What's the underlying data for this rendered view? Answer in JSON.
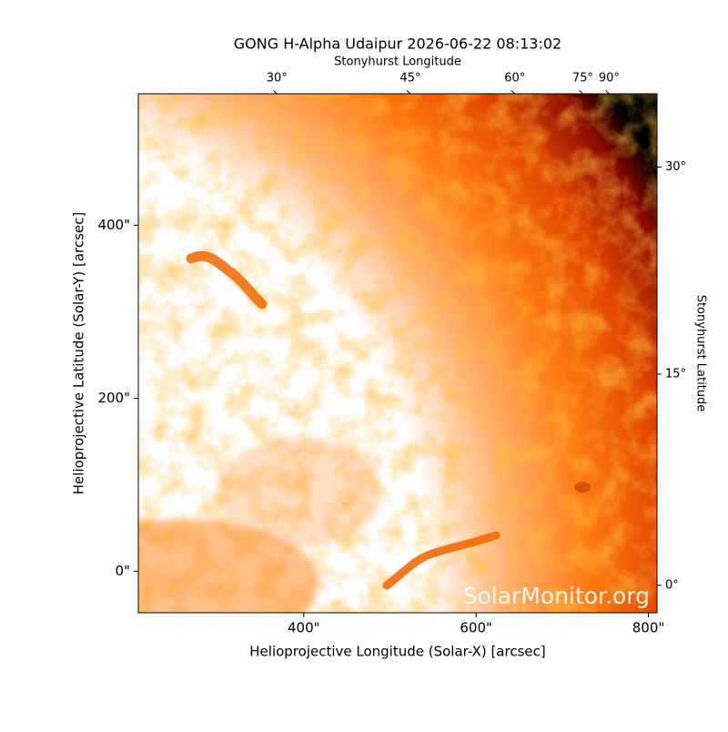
{
  "chart_data": {
    "type": "image",
    "title": "GONG H-Alpha Udaipur 2026-06-22 08:13:02",
    "xlabel": "Helioprojective Longitude (Solar-X) [arcsec]",
    "ylabel": "Helioprojective Latitude (Solar-Y) [arcsec]",
    "x2label": "Stonyhurst Longitude",
    "y2label": "Stonyhurst Latitude",
    "watermark": "SolarMonitor.org",
    "xlim": [
      208,
      810
    ],
    "ylim": [
      -48,
      552
    ],
    "xticks": [
      {
        "value": 400,
        "label": "400\""
      },
      {
        "value": 600,
        "label": "600\""
      },
      {
        "value": 800,
        "label": "800\""
      }
    ],
    "yticks": [
      {
        "value": 0,
        "label": "0\""
      },
      {
        "value": 200,
        "label": "200\""
      },
      {
        "value": 400,
        "label": "400\""
      }
    ],
    "x2ticks": [
      {
        "value": 30,
        "label": "30°"
      },
      {
        "value": 45,
        "label": "45°"
      },
      {
        "value": 60,
        "label": "60°"
      },
      {
        "value": 75,
        "label": "75°"
      },
      {
        "value": 90,
        "label": "90°"
      }
    ],
    "y2ticks": [
      {
        "value": 0,
        "label": "0°"
      },
      {
        "value": 15,
        "label": "15°"
      },
      {
        "value": 30,
        "label": "30°"
      }
    ],
    "colormap": [
      "#ffffff",
      "#ffffff",
      "#ffb070",
      "#ff7a10",
      "#e04500",
      "#8a0a00",
      "#000000"
    ]
  }
}
